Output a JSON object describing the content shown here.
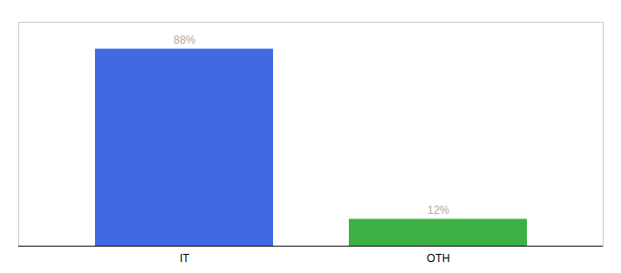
{
  "chart_data": {
    "type": "bar",
    "categories": [
      "IT",
      "OTH"
    ],
    "values": [
      88,
      12
    ],
    "value_labels": [
      "88%",
      "12%"
    ],
    "colors": [
      "#4169e1",
      "#3cb043"
    ],
    "ylim": [
      0,
      100
    ],
    "data_labels": true,
    "tick_labels": "x"
  }
}
